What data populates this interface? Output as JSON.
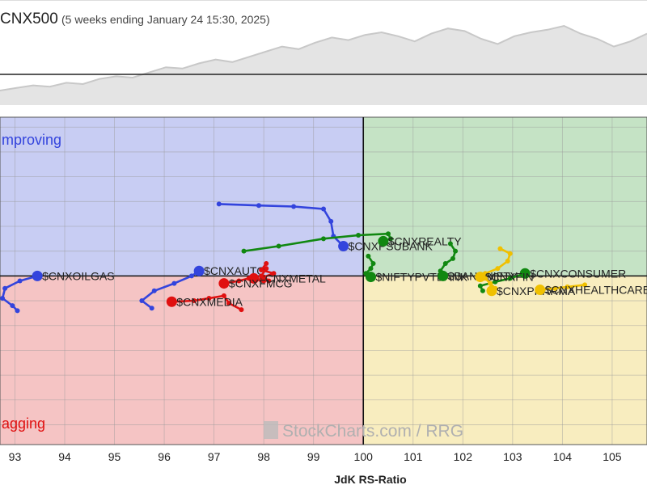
{
  "header": {
    "title": "CNX500",
    "subtitle": "(5 weeks ending January 24 15:30, 2025)"
  },
  "quadrant_labels": {
    "improving": "mproving",
    "lagging": "agging"
  },
  "watermark": "StockCharts.com / RRG",
  "colors": {
    "improving_bg": "#c8cdf3",
    "leading_bg": "#c5e3c5",
    "lagging_bg": "#f5c4c4",
    "weakening_bg": "#f8edbf",
    "blue": "#3344dd",
    "green": "#118811",
    "red": "#e01010",
    "yellow": "#f0c000"
  },
  "sparkline": [
    10,
    12,
    14,
    13,
    16,
    15,
    19,
    21,
    20,
    24,
    28,
    27,
    31,
    34,
    32,
    36,
    40,
    44,
    42,
    47,
    51,
    49,
    53,
    55,
    52,
    48,
    54,
    58,
    56,
    50,
    46,
    52,
    55,
    57,
    60,
    54,
    50,
    44,
    48,
    54
  ],
  "chart_data": {
    "type": "scatter",
    "xlabel": "JdK RS-Ratio",
    "ylabel": "",
    "xlim": [
      92.7,
      105.7
    ],
    "ylim": [
      96.6,
      103.2
    ],
    "x_ticks": [
      93,
      94,
      95,
      96,
      97,
      98,
      99,
      100,
      101,
      102,
      103,
      104,
      105
    ],
    "center": [
      100,
      100
    ],
    "grid": true,
    "series": [
      {
        "name": "$CNXOILGAS",
        "color": "blue",
        "points": [
          [
            93.05,
            99.3
          ],
          [
            92.95,
            99.4
          ],
          [
            92.75,
            99.55
          ],
          [
            92.8,
            99.75
          ],
          [
            93.1,
            99.9
          ],
          [
            93.45,
            100.0
          ]
        ]
      },
      {
        "name": "$CNXAUTO",
        "color": "blue",
        "points": [
          [
            95.75,
            99.35
          ],
          [
            95.55,
            99.5
          ],
          [
            95.8,
            99.7
          ],
          [
            96.2,
            99.85
          ],
          [
            96.55,
            100.0
          ],
          [
            96.7,
            100.1
          ]
        ]
      },
      {
        "name": "$CNXPSUBANK",
        "color": "blue",
        "points": [
          [
            97.1,
            101.45
          ],
          [
            97.9,
            101.42
          ],
          [
            98.6,
            101.4
          ],
          [
            99.2,
            101.35
          ],
          [
            99.35,
            101.1
          ],
          [
            99.4,
            100.8
          ],
          [
            99.6,
            100.6
          ]
        ]
      },
      {
        "name": "$CNXREALTY",
        "color": "green",
        "points": [
          [
            97.6,
            100.5
          ],
          [
            98.3,
            100.6
          ],
          [
            99.2,
            100.75
          ],
          [
            99.9,
            100.82
          ],
          [
            100.5,
            100.85
          ],
          [
            100.55,
            100.75
          ],
          [
            100.4,
            100.7
          ]
        ]
      },
      {
        "name": "$NIFTYPVTBANK",
        "color": "green",
        "points": [
          [
            100.1,
            100.4
          ],
          [
            100.2,
            100.25
          ],
          [
            100.15,
            100.15
          ],
          [
            100.05,
            100.05
          ],
          [
            100.15,
            99.98
          ]
        ]
      },
      {
        "name": "$BANKNIFTY",
        "color": "green",
        "points": [
          [
            101.75,
            100.65
          ],
          [
            101.85,
            100.5
          ],
          [
            101.8,
            100.35
          ],
          [
            101.65,
            100.25
          ],
          [
            101.55,
            100.1
          ],
          [
            101.6,
            100.0
          ]
        ]
      },
      {
        "name": "$CNXCONSUMER",
        "color": "green",
        "points": [
          [
            102.4,
            99.7
          ],
          [
            102.35,
            99.8
          ],
          [
            102.65,
            99.88
          ],
          [
            102.95,
            99.95
          ],
          [
            103.25,
            100.05
          ]
        ]
      },
      {
        "name": "$CNXMETAL",
        "color": "red",
        "points": [
          [
            98.05,
            100.25
          ],
          [
            97.95,
            100.12
          ],
          [
            98.2,
            100.05
          ],
          [
            98.0,
            99.98
          ],
          [
            98.1,
            99.9
          ],
          [
            97.8,
            99.95
          ]
        ]
      },
      {
        "name": "$CNXFMCG",
        "color": "red",
        "points": [
          [
            98.05,
            100.15
          ],
          [
            97.95,
            100.0
          ],
          [
            98.0,
            99.9
          ],
          [
            97.7,
            99.95
          ],
          [
            97.5,
            99.9
          ],
          [
            97.2,
            99.85
          ]
        ]
      },
      {
        "name": "$CNXMEDIA",
        "color": "red",
        "points": [
          [
            97.55,
            99.32
          ],
          [
            97.3,
            99.45
          ],
          [
            97.2,
            99.6
          ],
          [
            96.9,
            99.55
          ],
          [
            96.6,
            99.5
          ],
          [
            96.15,
            99.48
          ]
        ]
      },
      {
        "name": "$CNXFIN",
        "color": "yellow",
        "points": [
          [
            102.75,
            100.55
          ],
          [
            102.95,
            100.45
          ],
          [
            102.9,
            100.3
          ],
          [
            102.7,
            100.15
          ],
          [
            102.45,
            100.05
          ],
          [
            102.35,
            99.98
          ]
        ]
      },
      {
        "name": "$CNXPHARMA",
        "color": "yellow",
        "points": [
          [
            102.45,
            99.95
          ],
          [
            102.55,
            99.85
          ],
          [
            102.65,
            99.75
          ],
          [
            102.58,
            99.7
          ]
        ]
      },
      {
        "name": "$CNXHEALTHCARE",
        "color": "yellow",
        "points": [
          [
            104.45,
            99.82
          ],
          [
            104.1,
            99.78
          ],
          [
            103.85,
            99.75
          ],
          [
            103.55,
            99.72
          ]
        ]
      }
    ]
  }
}
